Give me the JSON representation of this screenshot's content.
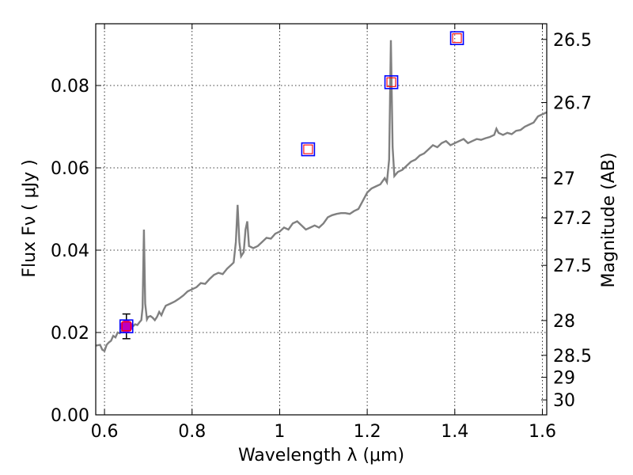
{
  "chart_data": {
    "type": "line",
    "xlabel": "Wavelength  λ (μm)",
    "ylabel": "Flux  Fν  ( μJy )",
    "y2label": "Magnitude (AB)",
    "xlim": [
      0.58,
      1.61
    ],
    "ylim": [
      0.0,
      0.095
    ],
    "x_ticks": [
      "0.6",
      "0.8",
      "1",
      "1.2",
      "1.4",
      "1.6"
    ],
    "x_tick_values": [
      0.6,
      0.8,
      1.0,
      1.2,
      1.4,
      1.6
    ],
    "y_ticks": [
      "0.00",
      "0.02",
      "0.04",
      "0.06",
      "0.08"
    ],
    "y_tick_values": [
      0.0,
      0.02,
      0.04,
      0.06,
      0.08
    ],
    "y2_ticks": [
      {
        "label": "26.5",
        "mag": 26.5
      },
      {
        "label": "26.7",
        "mag": 26.7
      },
      {
        "label": "27",
        "mag": 27.0
      },
      {
        "label": "27.2",
        "mag": 27.2
      },
      {
        "label": "27.5",
        "mag": 27.5
      },
      {
        "label": "28",
        "mag": 28.0
      },
      {
        "label": "28.5",
        "mag": 28.5
      },
      {
        "label": "29",
        "mag": 29.0
      },
      {
        "label": "30",
        "mag": 30.0
      }
    ],
    "grid": true,
    "colors": {
      "spectrum": "#808080",
      "model_box": "#0000ff",
      "model_inner": "#ff0000",
      "observed": "#bf00bf",
      "errorbar": "#000000"
    },
    "series": [
      {
        "type": "line",
        "points": [
          [
            0.58,
            0.0168
          ],
          [
            0.59,
            0.017
          ],
          [
            0.595,
            0.0158
          ],
          [
            0.6,
            0.0155
          ],
          [
            0.605,
            0.017
          ],
          [
            0.61,
            0.0176
          ],
          [
            0.615,
            0.018
          ],
          [
            0.62,
            0.0192
          ],
          [
            0.625,
            0.0188
          ],
          [
            0.63,
            0.02
          ],
          [
            0.635,
            0.0198
          ],
          [
            0.64,
            0.0205
          ],
          [
            0.645,
            0.0202
          ],
          [
            0.65,
            0.021
          ],
          [
            0.655,
            0.0212
          ],
          [
            0.66,
            0.0208
          ],
          [
            0.665,
            0.0215
          ],
          [
            0.67,
            0.022
          ],
          [
            0.675,
            0.0218
          ],
          [
            0.68,
            0.0225
          ],
          [
            0.684,
            0.023
          ],
          [
            0.687,
            0.026
          ],
          [
            0.69,
            0.045
          ],
          [
            0.693,
            0.027
          ],
          [
            0.697,
            0.0232
          ],
          [
            0.7,
            0.0238
          ],
          [
            0.705,
            0.024
          ],
          [
            0.71,
            0.0236
          ],
          [
            0.715,
            0.023
          ],
          [
            0.72,
            0.0238
          ],
          [
            0.725,
            0.025
          ],
          [
            0.73,
            0.0242
          ],
          [
            0.735,
            0.0255
          ],
          [
            0.74,
            0.0265
          ],
          [
            0.75,
            0.027
          ],
          [
            0.76,
            0.0275
          ],
          [
            0.77,
            0.0282
          ],
          [
            0.78,
            0.029
          ],
          [
            0.79,
            0.03
          ],
          [
            0.8,
            0.0305
          ],
          [
            0.81,
            0.031
          ],
          [
            0.82,
            0.032
          ],
          [
            0.83,
            0.0318
          ],
          [
            0.84,
            0.033
          ],
          [
            0.85,
            0.034
          ],
          [
            0.86,
            0.0345
          ],
          [
            0.87,
            0.0342
          ],
          [
            0.88,
            0.0355
          ],
          [
            0.89,
            0.0365
          ],
          [
            0.895,
            0.037
          ],
          [
            0.9,
            0.042
          ],
          [
            0.904,
            0.051
          ],
          [
            0.908,
            0.042
          ],
          [
            0.912,
            0.0385
          ],
          [
            0.918,
            0.0395
          ],
          [
            0.922,
            0.045
          ],
          [
            0.926,
            0.047
          ],
          [
            0.93,
            0.041
          ],
          [
            0.94,
            0.0405
          ],
          [
            0.95,
            0.041
          ],
          [
            0.96,
            0.042
          ],
          [
            0.97,
            0.043
          ],
          [
            0.98,
            0.0428
          ],
          [
            0.99,
            0.044
          ],
          [
            1.0,
            0.0445
          ],
          [
            1.01,
            0.0455
          ],
          [
            1.02,
            0.045
          ],
          [
            1.03,
            0.0465
          ],
          [
            1.04,
            0.047
          ],
          [
            1.05,
            0.046
          ],
          [
            1.06,
            0.045
          ],
          [
            1.07,
            0.0455
          ],
          [
            1.08,
            0.046
          ],
          [
            1.09,
            0.0455
          ],
          [
            1.1,
            0.0465
          ],
          [
            1.11,
            0.048
          ],
          [
            1.12,
            0.0485
          ],
          [
            1.13,
            0.0488
          ],
          [
            1.14,
            0.049
          ],
          [
            1.15,
            0.049
          ],
          [
            1.16,
            0.0488
          ],
          [
            1.17,
            0.0495
          ],
          [
            1.18,
            0.05
          ],
          [
            1.19,
            0.052
          ],
          [
            1.2,
            0.054
          ],
          [
            1.21,
            0.055
          ],
          [
            1.22,
            0.0555
          ],
          [
            1.23,
            0.056
          ],
          [
            1.24,
            0.0575
          ],
          [
            1.245,
            0.0565
          ],
          [
            1.25,
            0.062
          ],
          [
            1.254,
            0.091
          ],
          [
            1.258,
            0.065
          ],
          [
            1.262,
            0.058
          ],
          [
            1.27,
            0.059
          ],
          [
            1.28,
            0.0595
          ],
          [
            1.29,
            0.0605
          ],
          [
            1.3,
            0.0615
          ],
          [
            1.31,
            0.062
          ],
          [
            1.32,
            0.063
          ],
          [
            1.33,
            0.0635
          ],
          [
            1.34,
            0.0645
          ],
          [
            1.35,
            0.0655
          ],
          [
            1.36,
            0.065
          ],
          [
            1.37,
            0.066
          ],
          [
            1.38,
            0.0665
          ],
          [
            1.39,
            0.0655
          ],
          [
            1.4,
            0.066
          ],
          [
            1.41,
            0.0665
          ],
          [
            1.42,
            0.067
          ],
          [
            1.43,
            0.066
          ],
          [
            1.44,
            0.0665
          ],
          [
            1.45,
            0.067
          ],
          [
            1.46,
            0.0668
          ],
          [
            1.47,
            0.0672
          ],
          [
            1.48,
            0.0675
          ],
          [
            1.49,
            0.068
          ],
          [
            1.495,
            0.0695
          ],
          [
            1.5,
            0.0685
          ],
          [
            1.51,
            0.068
          ],
          [
            1.52,
            0.0685
          ],
          [
            1.53,
            0.0682
          ],
          [
            1.54,
            0.069
          ],
          [
            1.55,
            0.0692
          ],
          [
            1.56,
            0.07
          ],
          [
            1.57,
            0.0705
          ],
          [
            1.58,
            0.071
          ],
          [
            1.59,
            0.0725
          ],
          [
            1.6,
            0.073
          ],
          [
            1.61,
            0.0735
          ]
        ]
      },
      {
        "type": "scatter",
        "marker": "open-square",
        "points": [
          [
            0.65,
            0.0215
          ],
          [
            1.065,
            0.0645
          ],
          [
            1.255,
            0.0808
          ],
          [
            1.405,
            0.0915
          ]
        ]
      },
      {
        "type": "scatter",
        "marker": "filled-circle-with-errorbar",
        "points": [
          [
            0.65,
            0.0215
          ]
        ],
        "errors": [
          0.003
        ]
      }
    ]
  }
}
